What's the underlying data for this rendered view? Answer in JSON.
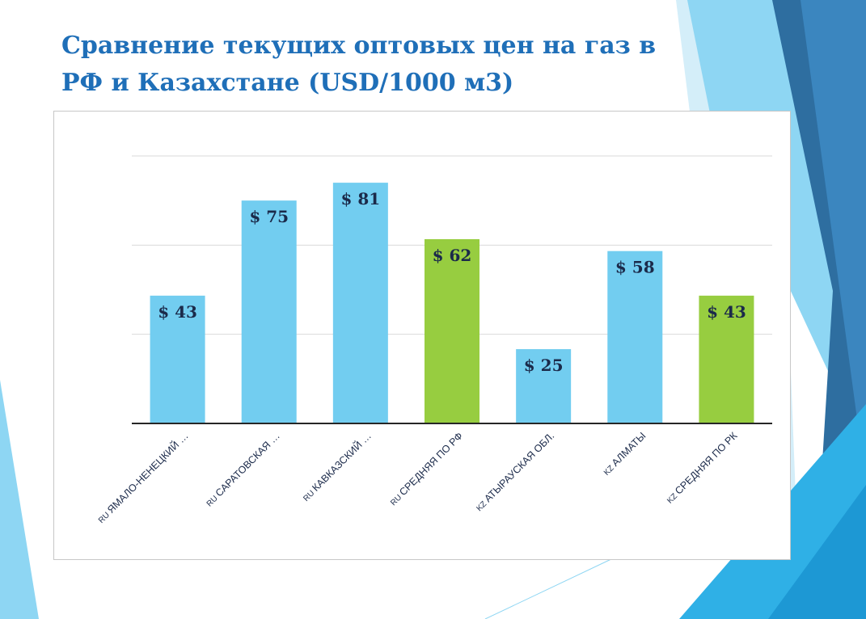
{
  "slide": {
    "title": "Сравнение текущих оптовых цен на газ в РФ и Казахстане (USD/1000 м3)"
  },
  "colors": {
    "title": "#1f6fb8",
    "bar_default": "#72cdf0",
    "bar_average": "#97cd40",
    "data_label": "#1b2a4a",
    "gridline": "#d9d9d9",
    "axis": "#262626"
  },
  "chart_data": {
    "type": "bar",
    "title": "",
    "xlabel": "",
    "ylabel": "",
    "ylim": [
      0,
      90
    ],
    "grid": true,
    "legend": "none",
    "value_prefix": "$ ",
    "categories": [
      {
        "prefix": "RU",
        "name": "ЯМАЛО-НЕНЕЦКИЙ …",
        "kind": "region"
      },
      {
        "prefix": "RU",
        "name": "САРАТОВСКАЯ …",
        "kind": "region"
      },
      {
        "prefix": "RU",
        "name": "КАВКАЗСКИЙ …",
        "kind": "region"
      },
      {
        "prefix": "RU",
        "name": "СРЕДНЯЯ ПО РФ",
        "kind": "average"
      },
      {
        "prefix": "KZ",
        "name": "АТЫРАУСКАЯ ОБЛ.",
        "kind": "region"
      },
      {
        "prefix": "KZ",
        "name": "АЛМАТЫ",
        "kind": "region"
      },
      {
        "prefix": "KZ",
        "name": "СРЕДНЯЯ ПО РК",
        "kind": "average"
      }
    ],
    "values": [
      43,
      75,
      81,
      62,
      25,
      58,
      43
    ],
    "data_labels": [
      "$ 43",
      "$ 75",
      "$ 81",
      "$ 62",
      "$ 25",
      "$ 58",
      "$ 43"
    ]
  }
}
